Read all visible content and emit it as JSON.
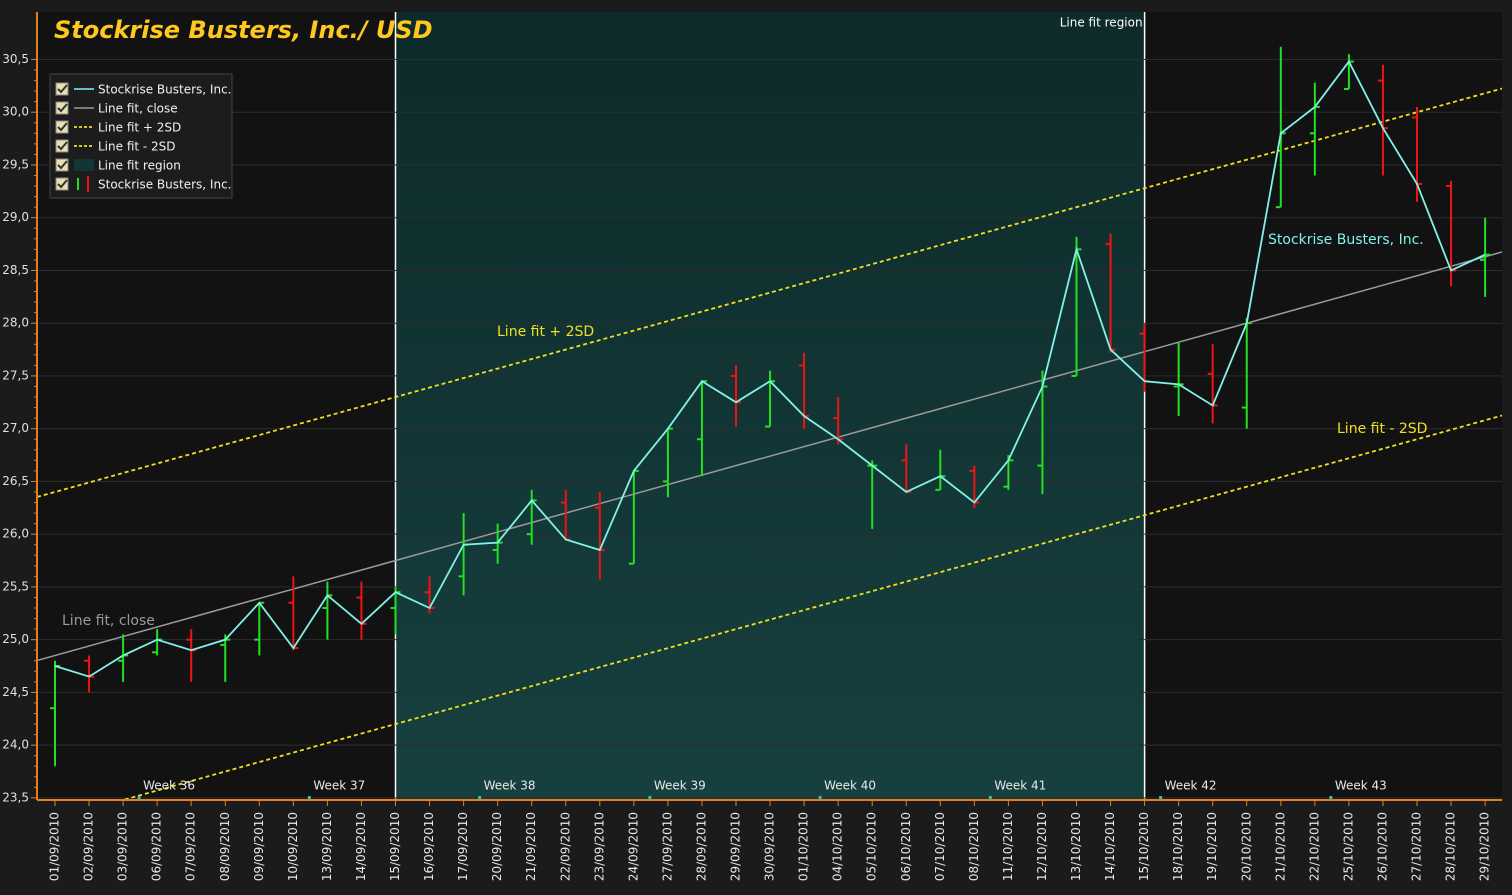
{
  "chart_data": {
    "type": "ohlc",
    "title": "Stockrise Busters, Inc./ USD",
    "categories": [
      "01/09/2010",
      "02/09/2010",
      "03/09/2010",
      "06/09/2010",
      "07/09/2010",
      "08/09/2010",
      "09/09/2010",
      "10/09/2010",
      "13/09/2010",
      "14/09/2010",
      "15/09/2010",
      "16/09/2010",
      "17/09/2010",
      "20/09/2010",
      "21/09/2010",
      "22/09/2010",
      "23/09/2010",
      "24/09/2010",
      "27/09/2010",
      "28/09/2010",
      "29/09/2010",
      "30/09/2010",
      "01/10/2010",
      "04/10/2010",
      "05/10/2010",
      "06/10/2010",
      "07/10/2010",
      "08/10/2010",
      "11/10/2010",
      "12/10/2010",
      "13/10/2010",
      "14/10/2010",
      "15/10/2010",
      "18/10/2010",
      "19/10/2010",
      "20/10/2010",
      "21/10/2010",
      "22/10/2010",
      "25/10/2010",
      "26/10/2010",
      "27/10/2010",
      "28/10/2010",
      "29/10/2010"
    ],
    "series": [
      {
        "name": "Stockrise Busters, Inc.",
        "style": "line",
        "color": "#7ff3ea",
        "values": [
          24.75,
          24.65,
          24.85,
          25.0,
          24.9,
          25.0,
          25.35,
          24.92,
          25.42,
          25.15,
          25.45,
          25.3,
          25.9,
          25.92,
          26.32,
          25.95,
          25.85,
          26.6,
          27.0,
          27.45,
          27.25,
          27.45,
          27.12,
          26.9,
          26.65,
          26.4,
          26.55,
          26.3,
          26.7,
          27.4,
          28.7,
          27.75,
          27.45,
          27.42,
          27.22,
          28.0,
          29.8,
          30.05,
          30.48,
          29.85,
          29.32,
          28.5,
          28.65
        ]
      },
      {
        "name": "Line fit, close",
        "style": "fit",
        "color": "#9a9a9a",
        "x": [
          "01/09/2010",
          "29/10/2010"
        ],
        "values": [
          24.85,
          28.63
        ]
      },
      {
        "name": "Line fit + 2SD",
        "style": "fit-dash",
        "color": "#f0e020",
        "x": [
          "01/09/2010",
          "29/10/2010"
        ],
        "values": [
          26.4,
          30.18
        ]
      },
      {
        "name": "Line fit - 2SD",
        "style": "fit-dash",
        "color": "#f0e020",
        "x": [
          "01/09/2010",
          "29/10/2010"
        ],
        "values": [
          23.3,
          27.08
        ]
      },
      {
        "name": "Line fit region",
        "style": "region",
        "color": "#123636",
        "x": [
          "15/09/2010",
          "15/10/2010"
        ]
      },
      {
        "name": "Stockrise Busters, Inc.",
        "style": "ohlc",
        "up_color": "#22e022",
        "down_color": "#ee1414",
        "open": [
          24.35,
          24.8,
          24.8,
          24.88,
          25.0,
          24.95,
          25.0,
          25.35,
          25.3,
          25.4,
          25.3,
          25.45,
          25.6,
          25.85,
          26.0,
          26.3,
          26.25,
          25.72,
          26.5,
          26.9,
          27.5,
          27.02,
          27.6,
          27.1,
          26.65,
          26.7,
          26.42,
          26.6,
          26.45,
          26.65,
          27.5,
          28.75,
          27.9,
          27.4,
          27.52,
          27.2,
          29.1,
          29.8,
          30.22,
          30.3,
          29.95,
          29.3,
          28.6
        ],
        "high": [
          24.8,
          24.85,
          25.05,
          25.1,
          25.1,
          25.05,
          25.35,
          25.6,
          25.55,
          25.55,
          25.5,
          25.6,
          26.2,
          26.1,
          26.42,
          26.42,
          26.4,
          26.6,
          27.0,
          27.45,
          27.6,
          27.55,
          27.72,
          27.3,
          26.7,
          26.85,
          26.8,
          26.65,
          26.75,
          27.55,
          28.82,
          28.85,
          28.0,
          27.82,
          27.8,
          28.05,
          30.62,
          30.28,
          30.55,
          30.45,
          30.05,
          29.35,
          29.0
        ],
        "low": [
          23.8,
          24.5,
          24.6,
          24.85,
          24.6,
          24.6,
          24.85,
          24.9,
          25.0,
          25.0,
          25.05,
          25.25,
          25.42,
          25.72,
          25.9,
          25.95,
          25.57,
          25.72,
          26.35,
          26.55,
          27.02,
          27.02,
          27.0,
          26.85,
          26.05,
          26.4,
          26.42,
          26.25,
          26.42,
          26.38,
          27.5,
          27.72,
          27.35,
          27.12,
          27.05,
          27.0,
          29.1,
          29.4,
          30.22,
          29.4,
          29.15,
          28.35,
          28.25
        ]
      }
    ],
    "week_labels": [
      "Week 36",
      "Week 37",
      "Week 38",
      "Week 39",
      "Week 40",
      "Week 41",
      "Week 42",
      "Week 43"
    ],
    "ylim": [
      23.48,
      30.95
    ],
    "yticks": [
      {
        "value": 23.5,
        "label": "23,5"
      },
      {
        "value": 24,
        "label": "24,0"
      },
      {
        "value": 24.5,
        "label": "24,5"
      },
      {
        "value": 25,
        "label": "25,0"
      },
      {
        "value": 25.5,
        "label": "25,5"
      },
      {
        "value": 26,
        "label": "26,0"
      },
      {
        "value": 26.5,
        "label": "26,5"
      },
      {
        "value": 27,
        "label": "27,0"
      },
      {
        "value": 27.5,
        "label": "27,5"
      },
      {
        "value": 28,
        "label": "28,0"
      },
      {
        "value": 28.5,
        "label": "28,5"
      },
      {
        "value": 29,
        "label": "29,0"
      },
      {
        "value": 29.5,
        "label": "29,5"
      },
      {
        "value": 30,
        "label": "30,0"
      },
      {
        "value": 30.5,
        "label": "30,5"
      }
    ],
    "grid": true,
    "legend": "top-left"
  }
}
